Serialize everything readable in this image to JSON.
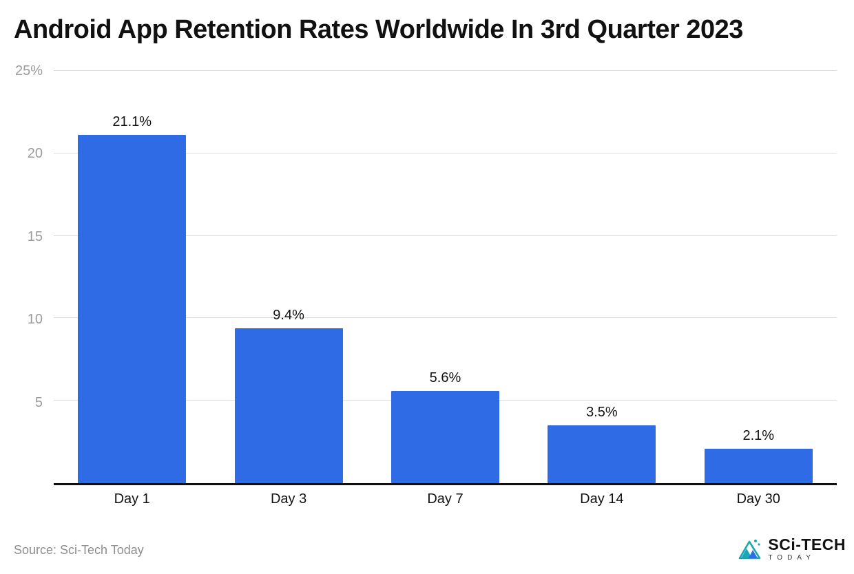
{
  "title": "Android App Retention Rates Worldwide In 3rd Quarter 2023",
  "source": "Source: Sci-Tech Today",
  "logo": {
    "line1": "SCi-TECH",
    "line2": "TODAY"
  },
  "chart_data": {
    "type": "bar",
    "title": "Android App Retention Rates Worldwide In 3rd Quarter 2023",
    "categories": [
      "Day 1",
      "Day 3",
      "Day 7",
      "Day 14",
      "Day 30"
    ],
    "values": [
      21.1,
      9.4,
      5.6,
      3.5,
      2.1
    ],
    "value_labels": [
      "21.1%",
      "9.4%",
      "5.6%",
      "3.5%",
      "2.1%"
    ],
    "xlabel": "",
    "ylabel": "",
    "ylim": [
      0,
      25
    ],
    "yticks": [
      5,
      10,
      15,
      20,
      25
    ],
    "ytick_labels": [
      "5",
      "10",
      "15",
      "20",
      "25%"
    ],
    "grid": true,
    "legend": "none",
    "bar_color": "#2F6BE4"
  }
}
